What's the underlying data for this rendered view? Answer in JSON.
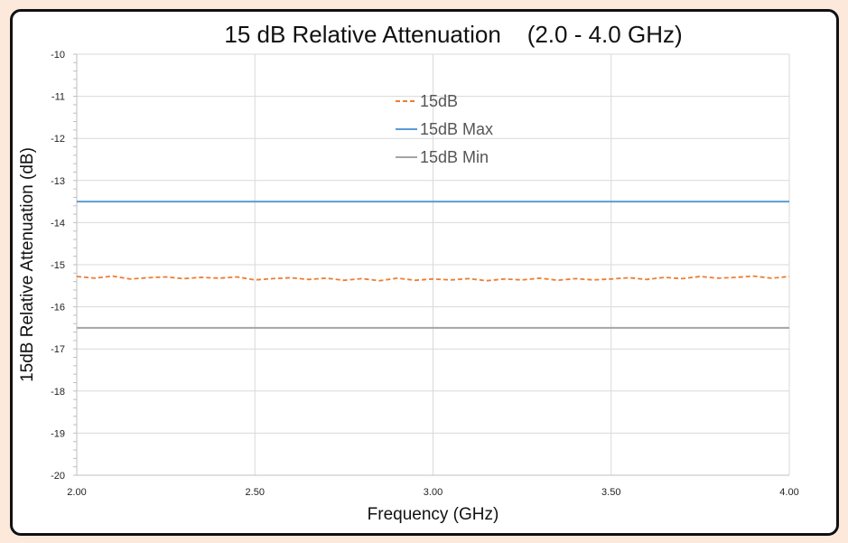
{
  "chart_data": {
    "type": "line",
    "title": "15 dB Relative Attenuation    (2.0 - 4.0 GHz)",
    "xlabel": "Frequency (GHz)",
    "ylabel": "15dB Relative Attenuation (dB)",
    "xlim": [
      2.0,
      4.0
    ],
    "ylim": [
      -20,
      -10
    ],
    "x_ticks": [
      "2.00",
      "2.50",
      "3.00",
      "3.50",
      "4.00"
    ],
    "y_ticks": [
      "-10",
      "-11",
      "-12",
      "-13",
      "-14",
      "-15",
      "-16",
      "-17",
      "-18",
      "-19",
      "-20"
    ],
    "grid": true,
    "legend_position": "top-center",
    "series": [
      {
        "name": "15dB",
        "color": "#ED7D31",
        "style": "dashed",
        "x": [
          2.0,
          2.05,
          2.1,
          2.15,
          2.2,
          2.25,
          2.3,
          2.35,
          2.4,
          2.45,
          2.5,
          2.55,
          2.6,
          2.65,
          2.7,
          2.75,
          2.8,
          2.85,
          2.9,
          2.95,
          3.0,
          3.05,
          3.1,
          3.15,
          3.2,
          3.25,
          3.3,
          3.35,
          3.4,
          3.45,
          3.5,
          3.55,
          3.6,
          3.65,
          3.7,
          3.75,
          3.8,
          3.85,
          3.9,
          3.95,
          4.0
        ],
        "values": [
          -15.28,
          -15.32,
          -15.27,
          -15.34,
          -15.31,
          -15.29,
          -15.33,
          -15.3,
          -15.32,
          -15.29,
          -15.36,
          -15.33,
          -15.31,
          -15.35,
          -15.32,
          -15.37,
          -15.33,
          -15.38,
          -15.32,
          -15.37,
          -15.34,
          -15.36,
          -15.33,
          -15.38,
          -15.34,
          -15.36,
          -15.32,
          -15.37,
          -15.33,
          -15.36,
          -15.34,
          -15.31,
          -15.35,
          -15.3,
          -15.33,
          -15.28,
          -15.32,
          -15.3,
          -15.27,
          -15.32,
          -15.28
        ]
      },
      {
        "name": "15dB Max",
        "color": "#5B9BD5",
        "style": "solid",
        "x": [
          2.0,
          4.0
        ],
        "values": [
          -13.5,
          -13.5
        ]
      },
      {
        "name": "15dB Min",
        "color": "#A5A5A5",
        "style": "solid",
        "x": [
          2.0,
          4.0
        ],
        "values": [
          -16.5,
          -16.5
        ]
      }
    ]
  }
}
